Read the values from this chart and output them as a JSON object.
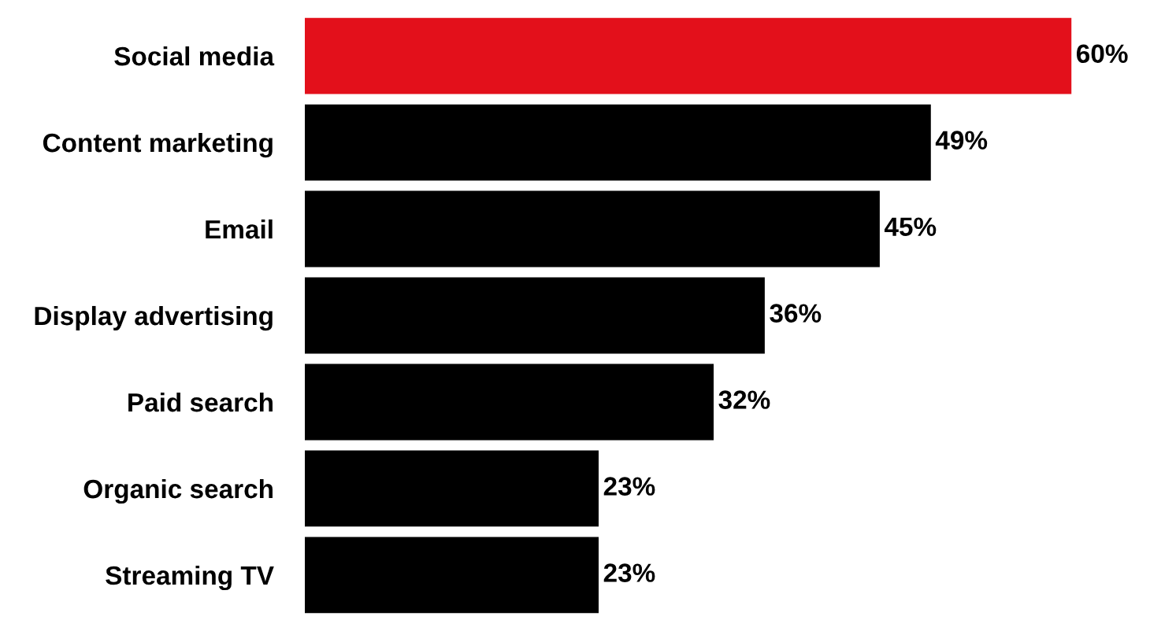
{
  "chart_data": {
    "type": "bar",
    "orientation": "horizontal",
    "categories": [
      "Social media",
      "Content marketing",
      "Email",
      "Display advertising",
      "Paid search",
      "Organic search",
      "Streaming TV"
    ],
    "values": [
      60,
      49,
      45,
      36,
      32,
      23,
      23
    ],
    "colors": [
      "#e3101b",
      "#000000",
      "#000000",
      "#000000",
      "#000000",
      "#000000",
      "#000000"
    ],
    "value_labels": [
      "60%",
      "49%",
      "45%",
      "36%",
      "32%",
      "23%",
      "23%"
    ],
    "tick_labels": "y",
    "grid": false,
    "legend": false
  }
}
